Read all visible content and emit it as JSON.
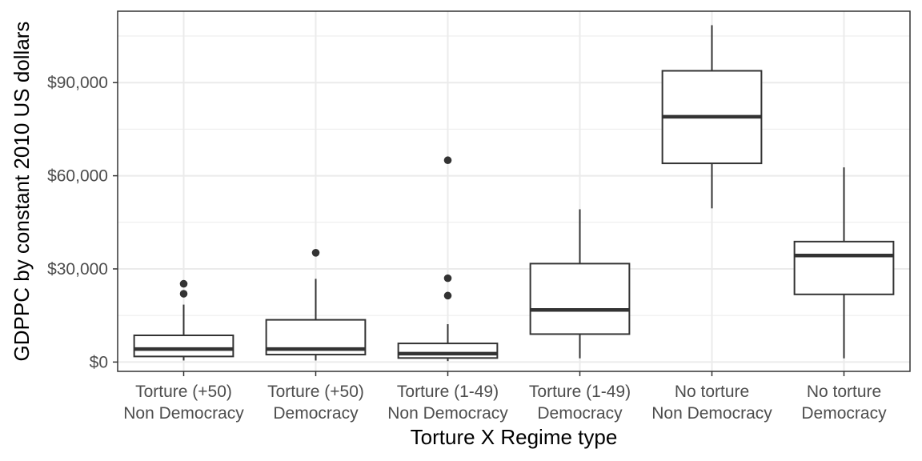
{
  "chart_data": {
    "type": "boxplot",
    "title": "",
    "xlabel": "Torture X Regime type",
    "ylabel": "GDPPC by constant 2010 US dollars",
    "ylim": [
      -3000,
      113000
    ],
    "yticks": [
      0,
      30000,
      60000,
      90000
    ],
    "ytick_labels": [
      "$0",
      "$30,000",
      "$60,000",
      "$90,000"
    ],
    "grid": true,
    "legend": "none",
    "colors": {
      "box_line": "#333333",
      "grid": "#ebebeb",
      "panel_border": "#333333",
      "tick_text": "#4d4d4d"
    },
    "categories": [
      {
        "label_lines": [
          "Torture (+50)",
          "Non Democracy"
        ],
        "lower_whisker": 500,
        "q1": 1800,
        "median": 4200,
        "q3": 8600,
        "upper_whisker": 18500,
        "outliers": [
          22000,
          25200
        ]
      },
      {
        "label_lines": [
          "Torture (+50)",
          "Democracy"
        ],
        "lower_whisker": 500,
        "q1": 2400,
        "median": 4200,
        "q3": 13600,
        "upper_whisker": 26800,
        "outliers": [
          35200
        ]
      },
      {
        "label_lines": [
          "Torture (1-49)",
          "Non Democracy"
        ],
        "lower_whisker": 300,
        "q1": 1300,
        "median": 2700,
        "q3": 6000,
        "upper_whisker": 12200,
        "outliers": [
          21400,
          27000,
          65000
        ]
      },
      {
        "label_lines": [
          "Torture (1-49)",
          "Democracy"
        ],
        "lower_whisker": 1200,
        "q1": 9000,
        "median": 16800,
        "q3": 31700,
        "upper_whisker": 49200,
        "outliers": []
      },
      {
        "label_lines": [
          "No torture",
          "Non Democracy"
        ],
        "lower_whisker": 49500,
        "q1": 64000,
        "median": 79000,
        "q3": 93800,
        "upper_whisker": 108500,
        "outliers": []
      },
      {
        "label_lines": [
          "No torture",
          "Democracy"
        ],
        "lower_whisker": 1200,
        "q1": 21800,
        "median": 34300,
        "q3": 38800,
        "upper_whisker": 62700,
        "outliers": []
      }
    ]
  }
}
